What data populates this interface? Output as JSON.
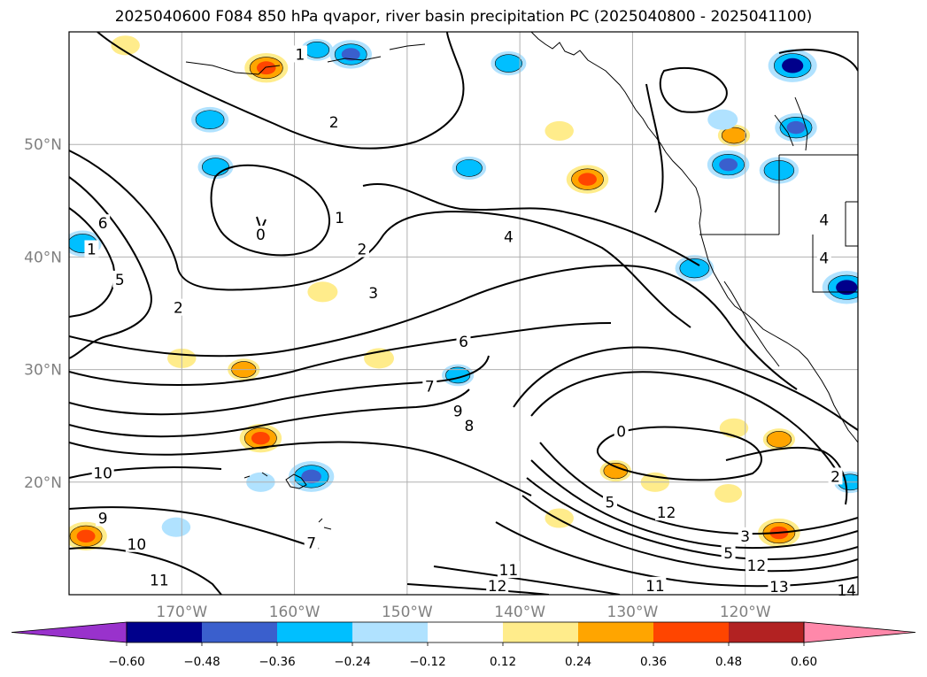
{
  "title": "2025040600 F084 850 hPa qvapor, river basin precipitation PC (2025040800 - 2025041100)",
  "map": {
    "lon_range": [
      -180,
      -110
    ],
    "lat_range": [
      10,
      60
    ],
    "lat_ticks": [
      {
        "value": 20,
        "label": "20°N"
      },
      {
        "value": 30,
        "label": "30°N"
      },
      {
        "value": 40,
        "label": "40°N"
      },
      {
        "value": 50,
        "label": "50°N"
      }
    ],
    "lon_ticks": [
      {
        "value": -170,
        "label": "170°W"
      },
      {
        "value": -160,
        "label": "160°W"
      },
      {
        "value": -150,
        "label": "150°W"
      },
      {
        "value": -140,
        "label": "140°W"
      },
      {
        "value": -130,
        "label": "130°W"
      },
      {
        "value": -120,
        "label": "120°W"
      }
    ],
    "grid": true,
    "contour_labels": [
      {
        "text": "1",
        "lon": -156.0,
        "lat": 43.5
      },
      {
        "text": "0",
        "lon": -163.0,
        "lat": 42.0
      },
      {
        "text": "2",
        "lon": -156.5,
        "lat": 52.0
      },
      {
        "text": "1",
        "lon": -159.5,
        "lat": 58.0
      },
      {
        "text": "2",
        "lon": -154.0,
        "lat": 40.7
      },
      {
        "text": "2",
        "lon": -170.3,
        "lat": 35.5
      },
      {
        "text": "3",
        "lon": -153.0,
        "lat": 36.8
      },
      {
        "text": "4",
        "lon": -141.0,
        "lat": 41.8
      },
      {
        "text": "6",
        "lon": -145.0,
        "lat": 32.5
      },
      {
        "text": "6",
        "lon": -177.0,
        "lat": 43.0
      },
      {
        "text": "5",
        "lon": -175.5,
        "lat": 38.0
      },
      {
        "text": "1",
        "lon": -178.0,
        "lat": 40.7
      },
      {
        "text": "7",
        "lon": -148.0,
        "lat": 28.5
      },
      {
        "text": "9",
        "lon": -145.5,
        "lat": 26.3
      },
      {
        "text": "8",
        "lon": -144.5,
        "lat": 25.0
      },
      {
        "text": "10",
        "lon": -177.0,
        "lat": 20.8
      },
      {
        "text": "9",
        "lon": -177.0,
        "lat": 16.8
      },
      {
        "text": "10",
        "lon": -174.0,
        "lat": 14.5
      },
      {
        "text": "11",
        "lon": -172.0,
        "lat": 11.3
      },
      {
        "text": "7",
        "lon": -158.5,
        "lat": 14.6
      },
      {
        "text": "0",
        "lon": -131.0,
        "lat": 24.5
      },
      {
        "text": "5",
        "lon": -132.0,
        "lat": 18.2
      },
      {
        "text": "12",
        "lon": -127.0,
        "lat": 17.3
      },
      {
        "text": "3",
        "lon": -120.0,
        "lat": 15.2
      },
      {
        "text": "5",
        "lon": -121.5,
        "lat": 13.7
      },
      {
        "text": "12",
        "lon": -119.0,
        "lat": 12.6
      },
      {
        "text": "11",
        "lon": -141.0,
        "lat": 12.2
      },
      {
        "text": "12",
        "lon": -142.0,
        "lat": 10.8
      },
      {
        "text": "11",
        "lon": -128.0,
        "lat": 10.8
      },
      {
        "text": "13",
        "lon": -117.0,
        "lat": 10.7
      },
      {
        "text": "14",
        "lon": -111.0,
        "lat": 10.4
      },
      {
        "text": "2",
        "lon": -112.0,
        "lat": 20.5
      },
      {
        "text": "4",
        "lon": -113.0,
        "lat": 43.3
      },
      {
        "text": "4",
        "lon": -113.0,
        "lat": 39.9
      }
    ],
    "shaded_areas": [
      {
        "lon": -162.5,
        "lat": 56.8,
        "value": 0.42
      },
      {
        "lon": -155.0,
        "lat": 58.0,
        "value": -0.4
      },
      {
        "lon": -141.0,
        "lat": 57.2,
        "value": -0.3
      },
      {
        "lon": -167.5,
        "lat": 52.2,
        "value": -0.33
      },
      {
        "lon": -163.0,
        "lat": 23.9,
        "value": 0.4
      },
      {
        "lon": -158.5,
        "lat": 20.5,
        "value": -0.45
      },
      {
        "lon": -178.5,
        "lat": 15.2,
        "value": 0.4
      },
      {
        "lon": -134.0,
        "lat": 46.9,
        "value": 0.4
      },
      {
        "lon": -115.8,
        "lat": 57.0,
        "value": -0.5
      },
      {
        "lon": -115.5,
        "lat": 51.5,
        "value": -0.4
      },
      {
        "lon": -121.5,
        "lat": 48.2,
        "value": -0.4
      },
      {
        "lon": -117.0,
        "lat": 47.7,
        "value": -0.36
      },
      {
        "lon": -111.0,
        "lat": 37.3,
        "value": -0.5
      },
      {
        "lon": -178.8,
        "lat": 41.2,
        "value": -0.34
      },
      {
        "lon": -167.0,
        "lat": 48.0,
        "value": -0.3
      },
      {
        "lon": -144.5,
        "lat": 47.9,
        "value": -0.28
      },
      {
        "lon": -124.5,
        "lat": 39.0,
        "value": -0.35
      },
      {
        "lon": -117.0,
        "lat": 15.5,
        "value": 0.4
      },
      {
        "lon": -121.0,
        "lat": 50.8,
        "value": 0.25
      },
      {
        "lon": -136.5,
        "lat": 51.2,
        "value": 0.2
      },
      {
        "lon": -175.0,
        "lat": 58.8,
        "value": 0.2
      },
      {
        "lon": -121.0,
        "lat": 24.8,
        "value": 0.2
      },
      {
        "lon": -117.0,
        "lat": 23.8,
        "value": 0.25
      },
      {
        "lon": -136.5,
        "lat": 16.8,
        "value": 0.2
      },
      {
        "lon": -128.0,
        "lat": 20.0,
        "value": 0.2
      },
      {
        "lon": -131.5,
        "lat": 21.0,
        "value": 0.24
      },
      {
        "lon": -121.5,
        "lat": 19.0,
        "value": 0.18
      },
      {
        "lon": -164.5,
        "lat": 30.0,
        "value": 0.25
      },
      {
        "lon": -157.5,
        "lat": 36.9,
        "value": 0.22
      },
      {
        "lon": -152.5,
        "lat": 31.0,
        "value": 0.22
      },
      {
        "lon": -145.5,
        "lat": 29.5,
        "value": -0.25
      },
      {
        "lon": -170.5,
        "lat": 16.0,
        "value": -0.2
      },
      {
        "lon": -158.0,
        "lat": 58.4,
        "value": -0.25
      },
      {
        "lon": -163.0,
        "lat": 20.0,
        "value": -0.2
      },
      {
        "lon": -122.0,
        "lat": 52.2,
        "value": -0.22
      },
      {
        "lon": -170.0,
        "lat": 31.0,
        "value": 0.2
      },
      {
        "lon": -110.7,
        "lat": 20.0,
        "value": -0.25
      }
    ]
  },
  "colorbar": {
    "tick_labels": [
      "−0.60",
      "−0.48",
      "−0.36",
      "−0.24",
      "−0.12",
      "0.12",
      "0.24",
      "0.36",
      "0.48",
      "0.60"
    ],
    "colors": [
      "#9932cc",
      "#00008b",
      "#3a5fcd",
      "#00bfff",
      "#b0e2ff",
      "#ffffff",
      "#ffec8b",
      "#ffa500",
      "#ff4500",
      "#b22222",
      "#ff88aa"
    ]
  }
}
